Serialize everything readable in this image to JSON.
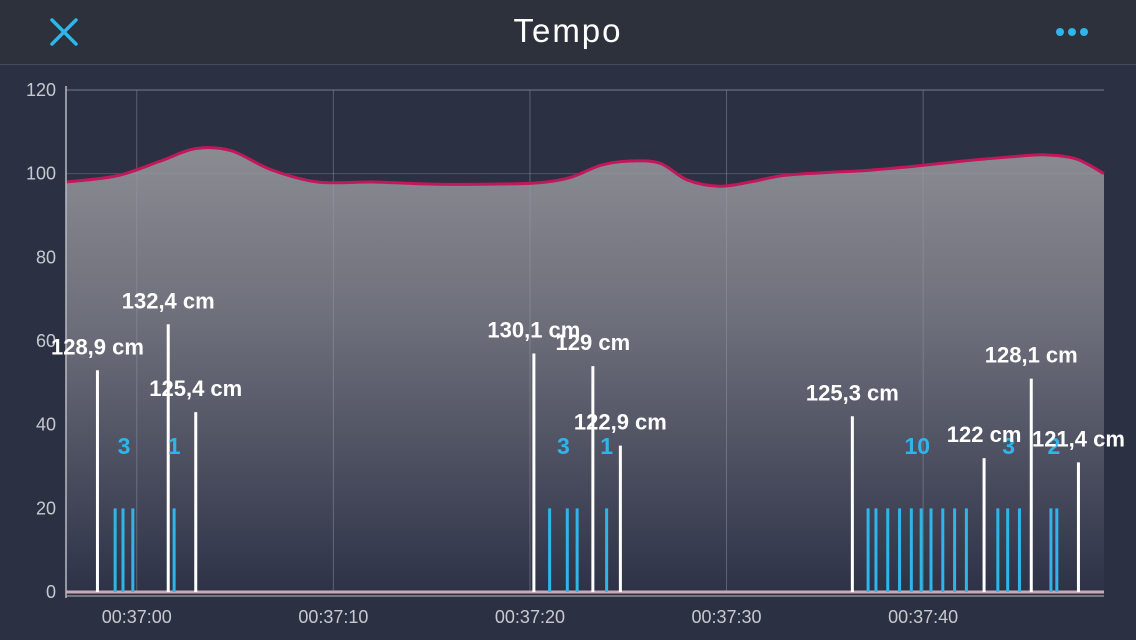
{
  "header": {
    "title": "Tempo",
    "close_icon": "close-x-icon",
    "more_icon": "more-dots-icon",
    "accent_color": "#2fb5ea"
  },
  "chart_data": {
    "type": "area",
    "title": "Tempo",
    "ylim": [
      0,
      120
    ],
    "yticks": [
      "0",
      "20",
      "40",
      "60",
      "80",
      "100",
      "120"
    ],
    "xlim": [
      53.2,
      79.6
    ],
    "xticks": [
      {
        "t": 55,
        "label": "00:37:00"
      },
      {
        "t": 60,
        "label": "00:37:10"
      },
      {
        "t": 65,
        "label": "00:37:20"
      },
      {
        "t": 70,
        "label": "00:37:30"
      },
      {
        "t": 75,
        "label": "00:37:40"
      }
    ],
    "grid": true,
    "area_color": "#8a8b92",
    "line_color": "#c2185b",
    "tempo_line": {
      "x": [
        53.2,
        54.5,
        55.6,
        56.5,
        57.4,
        58.4,
        59.6,
        61.0,
        62.5,
        64.0,
        65.2,
        66.0,
        66.8,
        67.5,
        68.3,
        69.0,
        69.8,
        70.6,
        71.4,
        72.4,
        73.6,
        74.8,
        76.0,
        77.2,
        78.1,
        78.9,
        79.6
      ],
      "y": [
        98,
        99.5,
        103,
        106,
        105.5,
        101,
        98,
        98,
        97.5,
        97.5,
        97.8,
        99,
        102,
        103,
        102.5,
        98.5,
        97,
        98,
        99.5,
        100.2,
        100.8,
        101.8,
        103,
        104,
        104.5,
        103.5,
        100
      ]
    },
    "swings": [
      {
        "t": 54.0,
        "value": 53,
        "label": "128,9 cm"
      },
      {
        "t": 55.8,
        "value": 64,
        "label": "132,4 cm"
      },
      {
        "t": 56.5,
        "value": 43,
        "label": "125,4 cm"
      },
      {
        "t": 65.1,
        "value": 57,
        "label": "130,1 cm"
      },
      {
        "t": 66.6,
        "value": 54,
        "label": "129 cm"
      },
      {
        "t": 67.3,
        "value": 35,
        "label": "122,9 cm"
      },
      {
        "t": 73.2,
        "value": 42,
        "label": "125,3 cm"
      },
      {
        "t": 76.55,
        "value": 32,
        "label": "122 cm"
      },
      {
        "t": 77.75,
        "value": 51,
        "label": "128,1 cm"
      },
      {
        "t": 78.95,
        "value": 31,
        "label": "121,4 cm"
      }
    ],
    "bounce_value": 20,
    "bounces": [
      {
        "count": "3",
        "t": [
          54.45,
          54.65,
          54.9
        ]
      },
      {
        "count": "1",
        "t": [
          55.95
        ]
      },
      {
        "count": "3",
        "t": [
          65.5,
          65.95,
          66.2
        ]
      },
      {
        "count": "1",
        "t": [
          66.95
        ]
      },
      {
        "count": "10",
        "t": [
          73.6,
          73.8,
          74.1,
          74.4,
          74.7,
          74.95,
          75.2,
          75.5,
          75.8,
          76.1
        ]
      },
      {
        "count": "3",
        "t": [
          76.9,
          77.15,
          77.45
        ]
      },
      {
        "count": "2",
        "t": [
          78.25,
          78.4
        ]
      }
    ]
  }
}
